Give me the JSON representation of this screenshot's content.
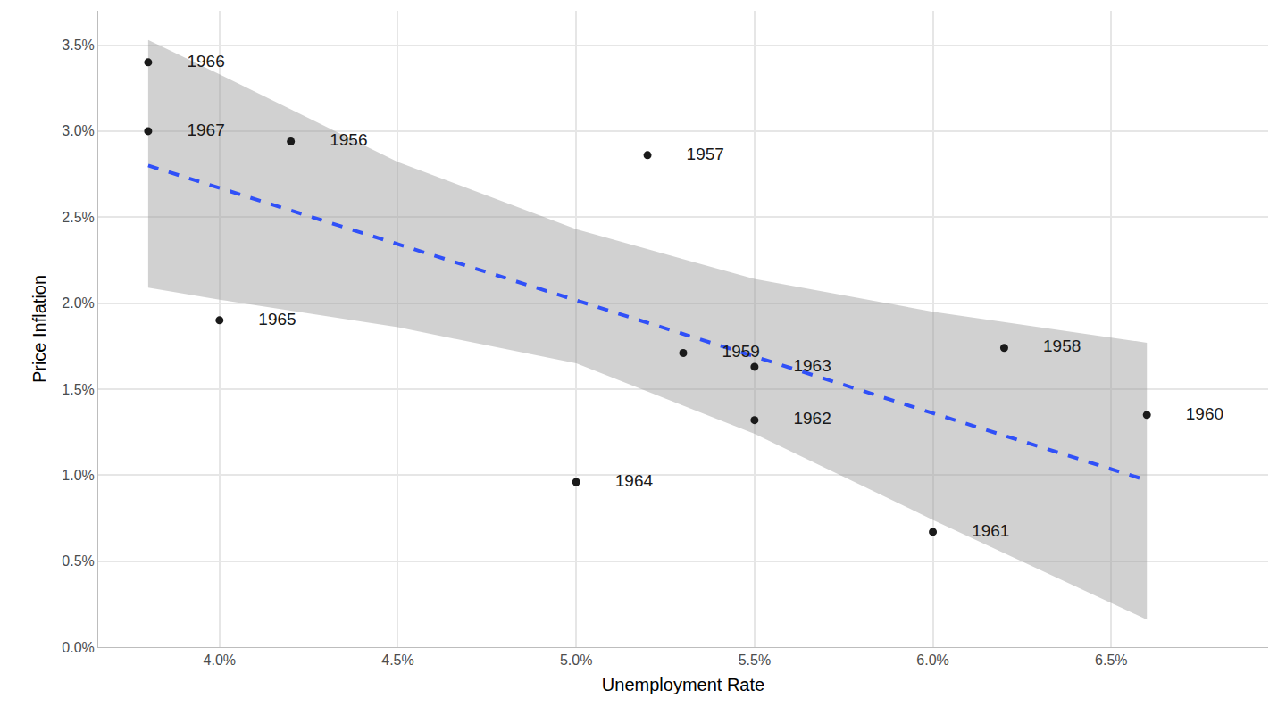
{
  "chart_data": {
    "type": "scatter",
    "xlabel": "Unemployment Rate",
    "ylabel": "Price Inflation",
    "x": [
      4.2,
      5.2,
      6.2,
      5.3,
      6.6,
      6.0,
      5.5,
      5.5,
      5.0,
      4.0,
      3.8,
      3.8
    ],
    "values": [
      2.94,
      2.86,
      1.74,
      1.71,
      1.35,
      0.67,
      1.32,
      1.63,
      0.96,
      1.9,
      3.4,
      3.0
    ],
    "point_labels": [
      "1956",
      "1957",
      "1958",
      "1959",
      "1960",
      "1961",
      "1962",
      "1963",
      "1964",
      "1965",
      "1966",
      "1967"
    ],
    "color": "#1a1a1a",
    "marker": "circle",
    "fit": {
      "x": [
        3.8,
        4.0,
        4.5,
        5.0,
        5.5,
        6.0,
        6.6
      ],
      "values": [
        2.8,
        2.67,
        2.34,
        2.02,
        1.69,
        1.36,
        0.97
      ],
      "lower": [
        2.09,
        2.02,
        1.86,
        1.65,
        1.24,
        0.74,
        0.16
      ],
      "upper": [
        3.53,
        3.33,
        2.82,
        2.43,
        2.14,
        1.95,
        1.77
      ],
      "color": "#3050f8",
      "line_style": "dash"
    },
    "xlim": [
      3.66,
      6.94
    ],
    "ylim": [
      0,
      3.7
    ],
    "xticks": [
      {
        "value": 4.0,
        "label": "4.0%"
      },
      {
        "value": 4.5,
        "label": "4.5%"
      },
      {
        "value": 5.0,
        "label": "5.0%"
      },
      {
        "value": 5.5,
        "label": "5.5%"
      },
      {
        "value": 6.0,
        "label": "6.0%"
      },
      {
        "value": 6.5,
        "label": "6.5%"
      }
    ],
    "yticks": [
      {
        "value": 0,
        "label": "0.0%"
      },
      {
        "value": 0.5,
        "label": "0.5%"
      },
      {
        "value": 1.0,
        "label": "1.0%"
      },
      {
        "value": 1.5,
        "label": "1.5%"
      },
      {
        "value": 2.0,
        "label": "2.0%"
      },
      {
        "value": 2.5,
        "label": "2.5%"
      },
      {
        "value": 3.0,
        "label": "3.0%"
      },
      {
        "value": 3.5,
        "label": "3.5%"
      }
    ],
    "grid": true
  }
}
